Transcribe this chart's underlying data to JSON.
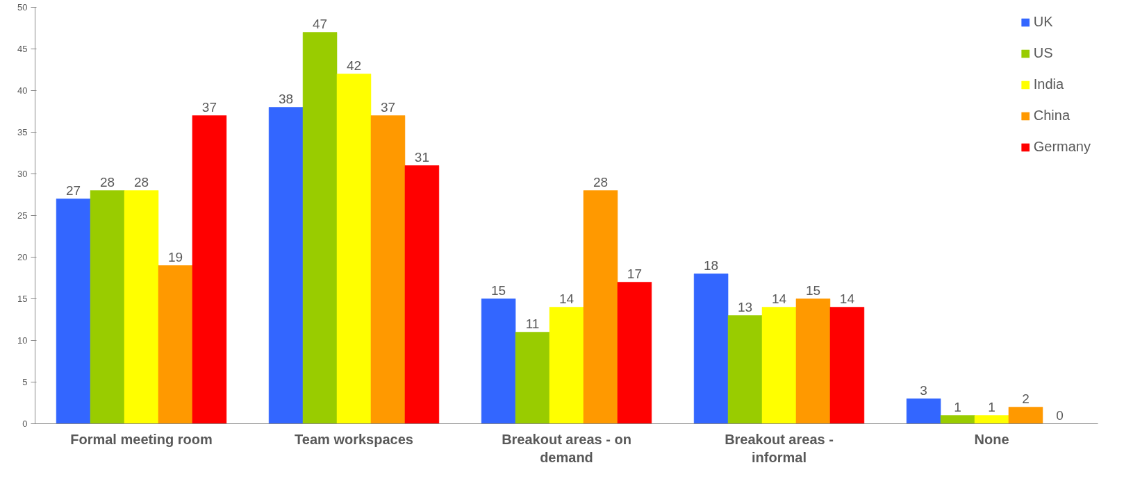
{
  "chart_data": {
    "type": "bar",
    "categories": [
      "Formal meeting room",
      "Team workspaces",
      "Breakout areas - on demand",
      "Breakout areas - informal",
      "None"
    ],
    "series": [
      {
        "name": "UK",
        "color": "#3366ff",
        "values": [
          27,
          38,
          15,
          18,
          3
        ]
      },
      {
        "name": "US",
        "color": "#99cc00",
        "values": [
          28,
          47,
          11,
          13,
          1
        ]
      },
      {
        "name": "India",
        "color": "#ffff00",
        "values": [
          28,
          42,
          14,
          14,
          1
        ]
      },
      {
        "name": "China",
        "color": "#ff9900",
        "values": [
          19,
          37,
          28,
          15,
          2
        ]
      },
      {
        "name": "Germany",
        "color": "#ff0000",
        "values": [
          37,
          31,
          17,
          14,
          0
        ]
      }
    ],
    "ylim": [
      0,
      50
    ],
    "yticks": [
      0,
      5,
      10,
      15,
      20,
      25,
      30,
      35,
      40,
      45,
      50
    ],
    "grid": false,
    "legend": "top right",
    "data_labels": true
  }
}
